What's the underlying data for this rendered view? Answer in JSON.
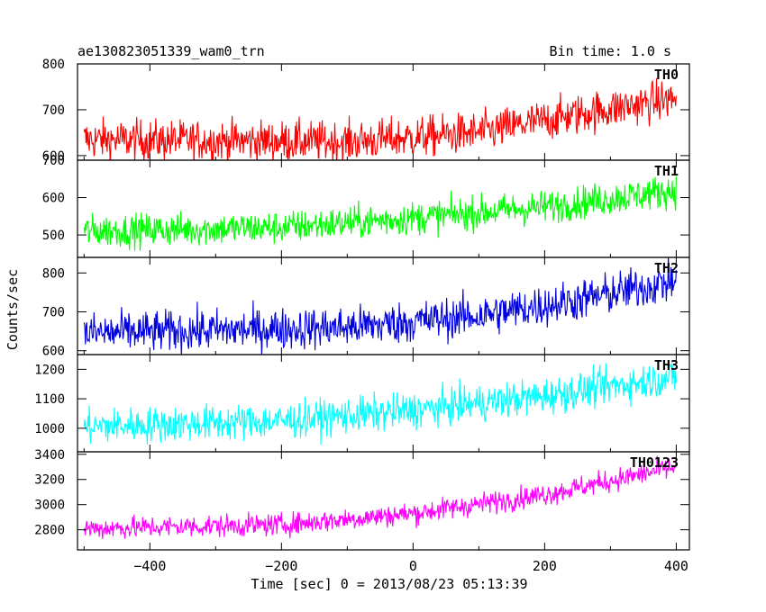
{
  "chart_data": {
    "type": "line",
    "title": "ae130823051339_wam0_trn",
    "bin_time_label": "Bin time: 1.0 s",
    "xlabel": "Time [sec] 0 = 2013/08/23 05:13:39",
    "ylabel": "Counts/sec",
    "xlim": [
      -510,
      420
    ],
    "x_ticks": [
      -400,
      -200,
      0,
      200,
      400
    ],
    "x_tick_labels": [
      "−400",
      "−200",
      "0",
      "200",
      "400"
    ],
    "x_range_data": [
      -500,
      400
    ],
    "panels": [
      {
        "name": "TH0",
        "color": "#ff0000",
        "ylim": [
          590,
          800
        ],
        "yticks": [
          600,
          700,
          800
        ],
        "trend": [
          [
            -500,
            635
          ],
          [
            -100,
            630
          ],
          [
            100,
            650
          ],
          [
            250,
            690
          ],
          [
            400,
            725
          ]
        ],
        "noise": 40
      },
      {
        "name": "TH1",
        "color": "#00ff00",
        "ylim": [
          440,
          700
        ],
        "yticks": [
          500,
          600,
          700
        ],
        "trend": [
          [
            -500,
            510
          ],
          [
            -200,
            520
          ],
          [
            0,
            545
          ],
          [
            200,
            575
          ],
          [
            400,
            620
          ]
        ],
        "noise": 40
      },
      {
        "name": "TH2",
        "color": "#0000e0",
        "ylim": [
          590,
          840
        ],
        "yticks": [
          600,
          700,
          800
        ],
        "trend": [
          [
            -500,
            645
          ],
          [
            -100,
            660
          ],
          [
            100,
            690
          ],
          [
            250,
            730
          ],
          [
            400,
            780
          ]
        ],
        "noise": 48
      },
      {
        "name": "TH3",
        "color": "#00ffff",
        "ylim": [
          920,
          1250
        ],
        "yticks": [
          1000,
          1100,
          1200
        ],
        "trend": [
          [
            -500,
            1005
          ],
          [
            -200,
            1025
          ],
          [
            0,
            1060
          ],
          [
            200,
            1110
          ],
          [
            400,
            1175
          ]
        ],
        "noise": 55
      },
      {
        "name": "TH0123",
        "color": "#ff00ff",
        "ylim": [
          2640,
          3420
        ],
        "yticks": [
          2800,
          3000,
          3200,
          3400
        ],
        "yticks_labeled": [
          2800,
          3000,
          3200,
          3400
        ],
        "trend": [
          [
            -500,
            2810
          ],
          [
            -200,
            2840
          ],
          [
            0,
            2930
          ],
          [
            200,
            3080
          ],
          [
            400,
            3300
          ]
        ],
        "noise": 80
      }
    ],
    "grid": false,
    "legend": "panel labels top-right"
  }
}
